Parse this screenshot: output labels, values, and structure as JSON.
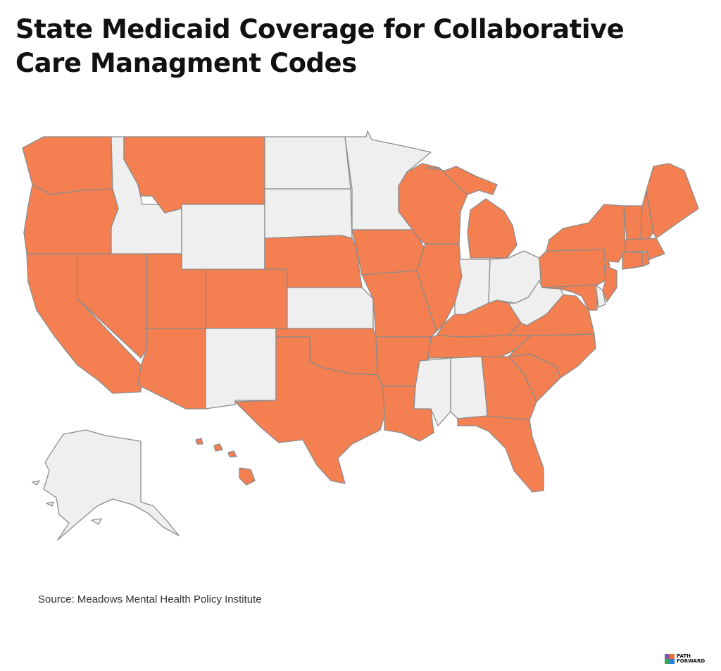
{
  "title": "State Medicaid Coverage for Collaborative Care Managment Codes",
  "source": "Source: Meadows Mental Health Policy Institute",
  "logo": {
    "line1": "PATH",
    "line2": "FORWARD",
    "colors": [
      "#7b5ea7",
      "#f26b3a",
      "#3aa655",
      "#2a7de1"
    ]
  },
  "colors": {
    "covered": "#F47F50",
    "not_covered": "#EFEFEF",
    "border": "#8C8C8C"
  },
  "states": {
    "WA": "covered",
    "OR": "covered",
    "CA": "covered",
    "NV": "covered",
    "ID": "not_covered",
    "MT": "covered",
    "WY": "not_covered",
    "UT": "covered",
    "AZ": "covered",
    "CO": "covered",
    "NM": "not_covered",
    "ND": "not_covered",
    "SD": "not_covered",
    "NE": "covered",
    "KS": "not_covered",
    "OK": "covered",
    "TX": "covered",
    "MN": "not_covered",
    "IA": "covered",
    "MO": "covered",
    "AR": "covered",
    "LA": "covered",
    "WI": "covered",
    "IL": "covered",
    "MI": "covered",
    "IN": "not_covered",
    "OH": "not_covered",
    "KY": "covered",
    "TN": "covered",
    "MS": "not_covered",
    "AL": "not_covered",
    "GA": "covered",
    "FL": "covered",
    "SC": "covered",
    "NC": "covered",
    "VA": "covered",
    "WV": "not_covered",
    "MD": "covered",
    "DE": "not_covered",
    "PA": "covered",
    "NJ": "covered",
    "NY": "covered",
    "CT": "covered",
    "RI": "covered",
    "MA": "covered",
    "VT": "covered",
    "NH": "covered",
    "ME": "covered",
    "AK": "not_covered",
    "HI": "covered"
  }
}
